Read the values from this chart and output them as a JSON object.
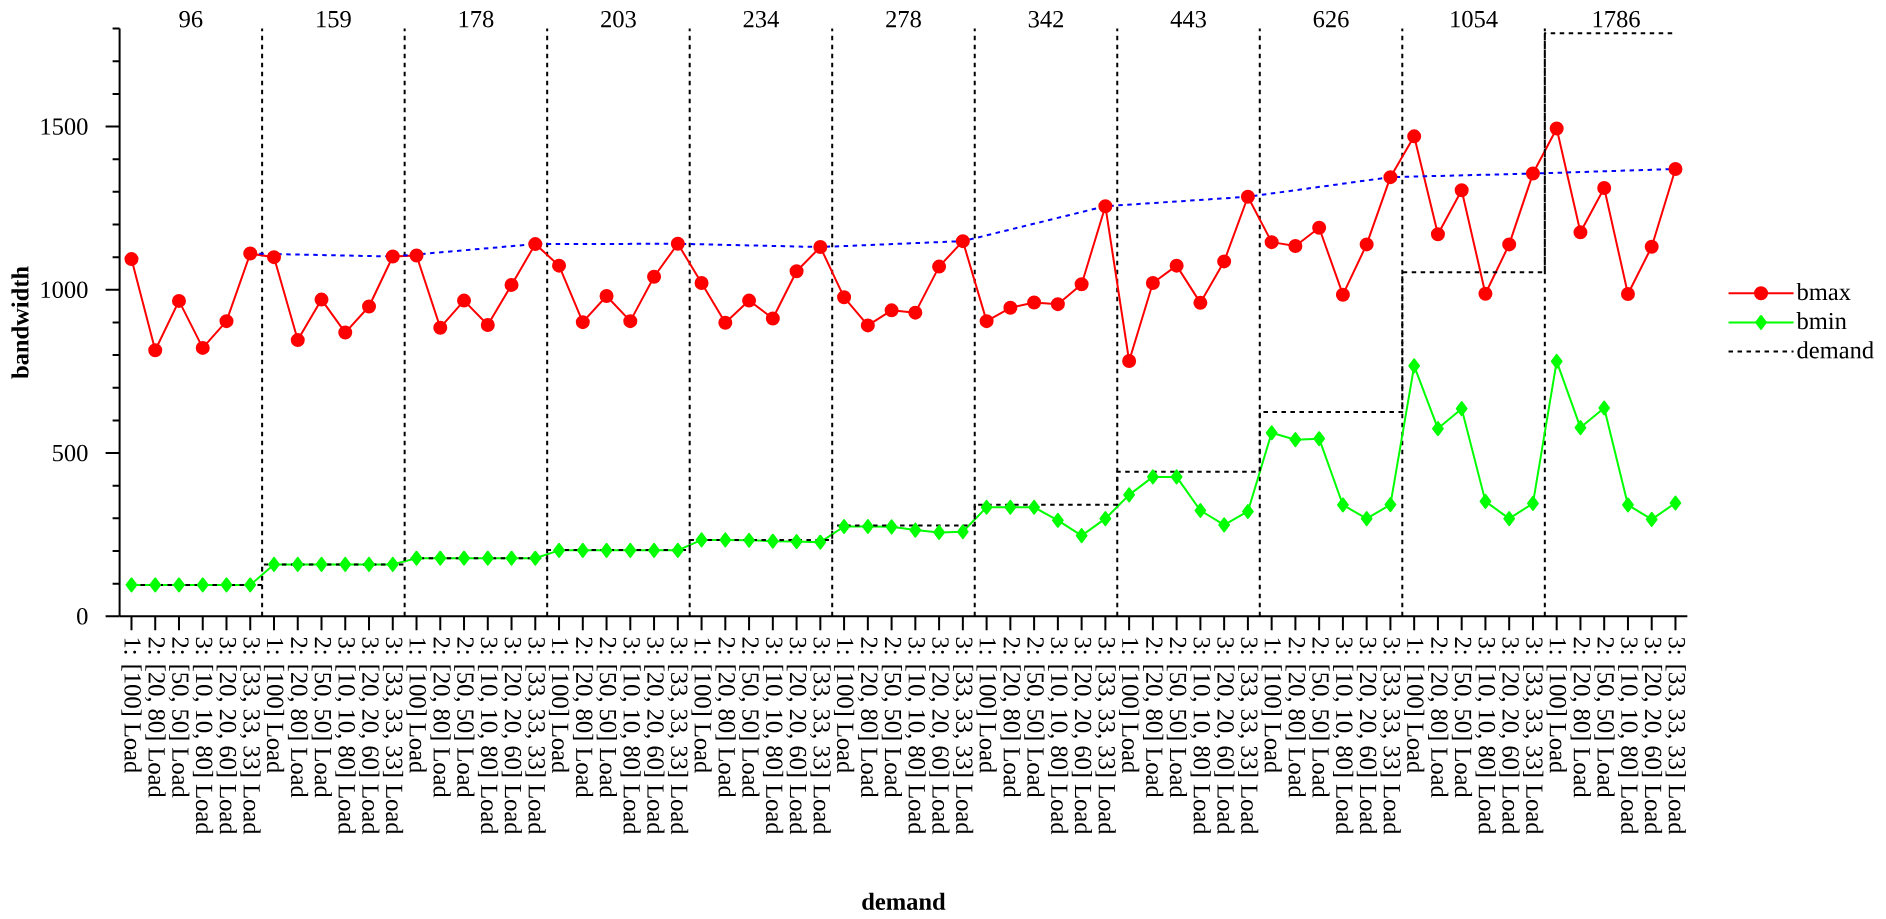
{
  "chart_data": {
    "type": "line",
    "xlabel": "demand",
    "ylabel": "bandwidth",
    "legend": "right",
    "annotations": [
      "96",
      "159",
      "178",
      "203",
      "234",
      "278",
      "342",
      "443",
      "626",
      "1054",
      "1786"
    ],
    "ylim": [
      0,
      1800
    ],
    "categories": [
      "1: [100] Load",
      "2: [20, 80] Load",
      "2: [50, 50] Load",
      "3: [10, 10, 80] Load",
      "3: [20, 20, 60] Load",
      "3: [33, 33, 33] Load",
      "1: [100] Load",
      "2: [20, 80] Load",
      "2: [50, 50] Load",
      "3: [10, 10, 80] Load",
      "3: [20, 20, 60] Load",
      "3: [33, 33, 33] Load",
      "1: [100] Load",
      "2: [20, 80] Load",
      "2: [50, 50] Load",
      "3: [10, 10, 80] Load",
      "3: [20, 20, 60] Load",
      "3: [33, 33, 33] Load",
      "1: [100] Load",
      "2: [20, 80] Load",
      "2: [50, 50] Load",
      "3: [10, 10, 80] Load",
      "3: [20, 20, 60] Load",
      "3: [33, 33, 33] Load",
      "1: [100] Load",
      "2: [20, 80] Load",
      "2: [50, 50] Load",
      "3: [10, 10, 80] Load",
      "3: [20, 20, 60] Load",
      "3: [33, 33, 33] Load",
      "1: [100] Load",
      "2: [20, 80] Load",
      "2: [50, 50] Load",
      "3: [10, 10, 80] Load",
      "3: [20, 20, 60] Load",
      "3: [33, 33, 33] Load",
      "1: [100] Load",
      "2: [20, 80] Load",
      "2: [50, 50] Load",
      "3: [10, 10, 80] Load",
      "3: [20, 20, 60] Load",
      "3: [33, 33, 33] Load",
      "1: [100] Load",
      "2: [20, 80] Load",
      "2: [50, 50] Load",
      "3: [10, 10, 80] Load",
      "3: [20, 20, 60] Load",
      "3: [33, 33, 33] Load",
      "1: [100] Load",
      "2: [20, 80] Load",
      "2: [50, 50] Load",
      "3: [10, 10, 80] Load",
      "3: [20, 20, 60] Load",
      "3: [33, 33, 33] Load",
      "1: [100] Load",
      "2: [20, 80] Load",
      "2: [50, 50] Load",
      "3: [10, 10, 80] Load",
      "3: [20, 20, 60] Load",
      "3: [33, 33, 33] Load",
      "1: [100] Load",
      "2: [20, 80] Load",
      "2: [50, 50] Load",
      "3: [10, 10, 80] Load",
      "3: [20, 20, 60] Load",
      "3: [33, 33, 33] Load"
    ],
    "yticks": [
      0,
      {
        "value": 100,
        "label": null
      },
      {
        "value": 200,
        "label": null
      },
      {
        "value": 300,
        "label": null
      },
      {
        "value": 400,
        "label": null
      },
      500,
      {
        "value": 600,
        "label": null
      },
      {
        "value": 700,
        "label": null
      },
      {
        "value": 800,
        "label": null
      },
      {
        "value": 900,
        "label": null
      },
      1000,
      {
        "value": 1100,
        "label": null
      },
      {
        "value": 1200,
        "label": null
      },
      {
        "value": 1300,
        "label": null
      },
      {
        "value": 1400,
        "label": null
      },
      1500,
      {
        "value": 1600,
        "label": null
      },
      {
        "value": 1700,
        "label": null
      },
      {
        "value": 1800,
        "label": null
      }
    ],
    "series": [
      {
        "name": "bmax",
        "color": "#ff0000",
        "marker": "circle",
        "line_style": "solid",
        "values": [
          1094,
          815,
          966,
          822,
          904,
          1111,
          1100,
          846,
          970,
          869,
          949,
          1102,
          1105,
          884,
          967,
          892,
          1015,
          1140,
          1074,
          901,
          981,
          904,
          1040,
          1141,
          1021,
          899,
          967,
          912,
          1057,
          1131,
          977,
          891,
          937,
          930,
          1071,
          1149,
          904,
          945,
          961,
          956,
          1017,
          1256,
          782,
          1021,
          1074,
          960,
          1087,
          1285,
          1146,
          1134,
          1190,
          985,
          1139,
          1345,
          1470,
          1170,
          1305,
          988,
          1139,
          1356,
          1494,
          1176,
          1312,
          987,
          1132,
          1370
        ]
      },
      {
        "name": "bmin",
        "color": "#00ff00",
        "marker": "diamond",
        "line_style": "solid",
        "values": [
          96,
          96,
          96,
          96,
          96,
          96,
          159,
          159,
          159,
          159,
          159,
          159,
          178,
          178,
          178,
          178,
          178,
          178,
          202,
          202,
          202,
          202,
          202,
          202,
          234,
          234,
          233,
          230,
          229,
          227,
          275,
          275,
          274,
          264,
          257,
          259,
          334,
          334,
          334,
          294,
          247,
          299,
          372,
          427,
          427,
          324,
          280,
          321,
          562,
          541,
          544,
          341,
          299,
          342,
          767,
          575,
          636,
          352,
          299,
          346,
          781,
          578,
          638,
          341,
          297,
          347
        ]
      },
      {
        "name": "demand",
        "type": "step",
        "color": "#000000",
        "marker": "none",
        "line_style": "dashed",
        "values": [
          96,
          96,
          96,
          96,
          96,
          96,
          159,
          159,
          159,
          159,
          159,
          159,
          178,
          178,
          178,
          178,
          178,
          178,
          203,
          203,
          203,
          203,
          203,
          203,
          234,
          234,
          234,
          234,
          234,
          234,
          278,
          278,
          278,
          278,
          278,
          278,
          342,
          342,
          342,
          342,
          342,
          342,
          443,
          443,
          443,
          443,
          443,
          443,
          626,
          626,
          626,
          626,
          626,
          626,
          1054,
          1054,
          1054,
          1054,
          1054,
          1054,
          1786,
          1786,
          1786,
          1786,
          1786,
          1786
        ]
      },
      {
        "color": "#0000ff",
        "marker": "none",
        "line_style": "dashed",
        "values": [
          null,
          null,
          null,
          null,
          null,
          1111,
          null,
          null,
          null,
          null,
          null,
          1102,
          null,
          null,
          null,
          null,
          null,
          1140,
          null,
          null,
          null,
          null,
          null,
          1141,
          null,
          null,
          null,
          null,
          null,
          1131,
          null,
          null,
          null,
          null,
          null,
          1149,
          null,
          null,
          null,
          null,
          null,
          1256,
          null,
          null,
          null,
          null,
          null,
          1285,
          null,
          null,
          null,
          null,
          null,
          1345,
          null,
          null,
          null,
          null,
          null,
          1356,
          null,
          null,
          null,
          null,
          null,
          1370
        ]
      }
    ]
  }
}
